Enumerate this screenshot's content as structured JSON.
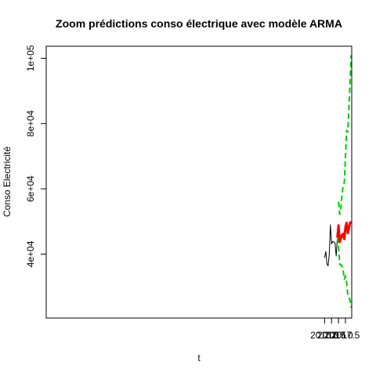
{
  "chart_data": {
    "type": "line",
    "title": "Zoom prédictions conso électrique avec modèle ARMA",
    "xlabel": "t",
    "ylabel": "Conso Electricité",
    "xlim": [
      1995.96,
      2017.95
    ],
    "ylim": [
      20400,
      103700
    ],
    "x_ticks": [
      2016.0,
      2016.5,
      2017.0,
      2017.5
    ],
    "x_tick_labels": [
      "2016.0",
      "2016.5",
      "2017.0",
      "2017.5"
    ],
    "y_ticks": [
      40000,
      60000,
      80000,
      100000
    ],
    "y_tick_labels": [
      "4e+04",
      "6e+04",
      "8e+04",
      "1e+05"
    ],
    "grid": false,
    "legend": "none",
    "series": [
      {
        "role": "observed",
        "color": "#000000",
        "style": "solid",
        "width": 1,
        "x": [
          2016.0,
          2016.083,
          2016.167,
          2016.25,
          2016.333,
          2016.417,
          2016.5,
          2016.583,
          2016.667,
          2016.75,
          2016.833,
          2016.917
        ],
        "y": [
          38900,
          40800,
          37000,
          36400,
          39900,
          49000,
          43100,
          43900,
          43700,
          43400,
          39400,
          45100
        ]
      },
      {
        "role": "forecast",
        "color": "#ff0000",
        "style": "solid",
        "width": 3,
        "x": [
          2016.917,
          2017.0,
          2017.083,
          2017.167,
          2017.25,
          2017.333,
          2017.417,
          2017.5,
          2017.583,
          2017.667,
          2017.75,
          2017.833,
          2017.917
        ],
        "y": [
          45100,
          48800,
          43700,
          44700,
          45900,
          46200,
          44600,
          48300,
          49600,
          46400,
          48000,
          49600,
          49900
        ]
      },
      {
        "role": "upper-bound",
        "color": "#00cc00",
        "style": "dashed",
        "width": 2,
        "x": [
          2017.0,
          2017.083,
          2017.167,
          2017.25,
          2017.333,
          2017.417,
          2017.5,
          2017.583,
          2017.667,
          2017.75,
          2017.833,
          2017.917
        ],
        "y": [
          56000,
          52200,
          54300,
          58100,
          61000,
          61900,
          69800,
          77900,
          77400,
          84700,
          93000,
          101000
        ]
      },
      {
        "role": "lower-bound",
        "color": "#00cc00",
        "style": "dashed",
        "width": 2,
        "x": [
          2016.917,
          2017.0,
          2017.083,
          2017.167,
          2017.25,
          2017.333,
          2017.417,
          2017.5,
          2017.583,
          2017.667,
          2017.75,
          2017.833,
          2017.917
        ],
        "y": [
          45100,
          42600,
          36900,
          36700,
          36400,
          35100,
          32300,
          33300,
          31400,
          27500,
          26800,
          25700,
          23600
        ]
      }
    ]
  }
}
